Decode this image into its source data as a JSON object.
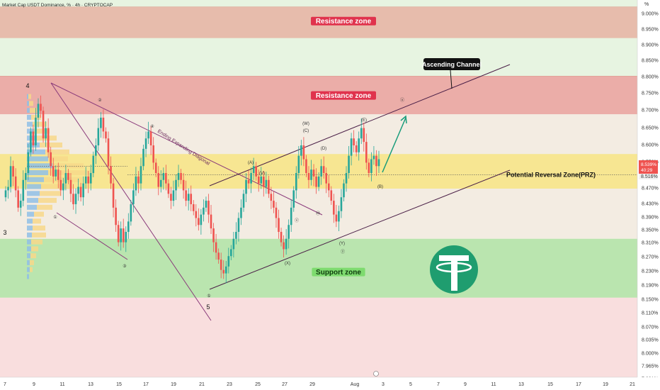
{
  "chart_data": {
    "type": "candlestick",
    "title": "Market Cap USDT Dominance, % · 4h · CRYPTOCAP",
    "unit_label": "%",
    "ylim": [
      7.91,
      9.0
    ],
    "y_ticks": [
      "9.000%",
      "8.950%",
      "8.900%",
      "8.850%",
      "8.800%",
      "8.750%",
      "8.700%",
      "8.650%",
      "8.600%",
      "8.550%",
      "8.470%",
      "8.430%",
      "8.390%",
      "8.350%",
      "8.310%",
      "8.270%",
      "8.230%",
      "8.190%",
      "8.150%",
      "8.110%",
      "8.070%",
      "8.035%",
      "8.000%",
      "7.965%",
      "7.931%"
    ],
    "x_ticks": [
      "7",
      "9",
      "11",
      "13",
      "15",
      "17",
      "19",
      "21",
      "23",
      "25",
      "27",
      "29",
      "Aug",
      "3",
      "5",
      "7",
      "9",
      "11",
      "13",
      "15",
      "17",
      "19",
      "21"
    ],
    "current_price": {
      "label": "8.539%",
      "countdown": "40:29",
      "secondary_label": "8.516%"
    },
    "zones": [
      {
        "name": "Resistance zone",
        "from": 8.89,
        "to": 8.98,
        "color": "#e7b6a6"
      },
      {
        "name": "Resistance zone",
        "from": 8.67,
        "to": 8.78,
        "color": "#eba5a2"
      },
      {
        "name": "Potential Reversal Zone(PRZ)",
        "from": 8.455,
        "to": 8.555,
        "color": "#f7e589"
      },
      {
        "name": "Support zone",
        "from": 8.14,
        "to": 8.31,
        "color": "#b5e3a8"
      }
    ],
    "annotations": {
      "ascending_channel": "Ascending Channel",
      "ending_diagonal": "Ending Expanding Diagonal",
      "big_waves": [
        "4",
        "3",
        "5"
      ],
      "small_waves": [
        "①",
        "②",
        "③",
        "④",
        "⑤",
        "(A)",
        "(B)",
        "(C)",
        "(D)",
        "(E)",
        "(V)",
        "(W)",
        "(X)",
        "(Y)",
        "ⓨ",
        "Ⓜ",
        "ⓧ",
        "ⓤ"
      ]
    },
    "candles_close": [
      8.45,
      8.46,
      8.52,
      8.49,
      8.45,
      8.4,
      8.42,
      8.48,
      8.5,
      8.56,
      8.62,
      8.58,
      8.66,
      8.7,
      8.68,
      8.6,
      8.63,
      8.56,
      8.52,
      8.49,
      8.51,
      8.48,
      8.45,
      8.47,
      8.5,
      8.48,
      8.44,
      8.41,
      8.44,
      8.46,
      8.43,
      8.47,
      8.49,
      8.47,
      8.5,
      8.55,
      8.58,
      8.63,
      8.66,
      8.62,
      8.6,
      8.52,
      8.47,
      8.4,
      8.35,
      8.3,
      8.34,
      8.3,
      8.33,
      8.36,
      8.41,
      8.45,
      8.49,
      8.47,
      8.52,
      8.57,
      8.6,
      8.62,
      8.58,
      8.53,
      8.5,
      8.46,
      8.48,
      8.5,
      8.47,
      8.44,
      8.42,
      8.45,
      8.48,
      8.5,
      8.48,
      8.45,
      8.42,
      8.44,
      8.41,
      8.39,
      8.37,
      8.35,
      8.38,
      8.4,
      8.42,
      8.38,
      8.34,
      8.3,
      8.27,
      8.25,
      8.22,
      8.21,
      8.23,
      8.26,
      8.28,
      8.31,
      8.33,
      8.37,
      8.4,
      8.44,
      8.48,
      8.47,
      8.5,
      8.52,
      8.49,
      8.47,
      8.49,
      8.46,
      8.48,
      8.44,
      8.42,
      8.4,
      8.37,
      8.33,
      8.3,
      8.28,
      8.31,
      8.35,
      8.4,
      8.45,
      8.5,
      8.55,
      8.58,
      8.54,
      8.5,
      8.48,
      8.51,
      8.49,
      8.46,
      8.49,
      8.52,
      8.5,
      8.47,
      8.45,
      8.42,
      8.38,
      8.36,
      8.39,
      8.43,
      8.47,
      8.5,
      8.55,
      8.6,
      8.58,
      8.56,
      8.6,
      8.63,
      8.59,
      8.53,
      8.5,
      8.54,
      8.55,
      8.52,
      8.54
    ]
  },
  "logo": {
    "name": "tether-logo-icon",
    "color": "#1f9d6f"
  }
}
